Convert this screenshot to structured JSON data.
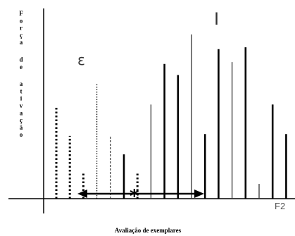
{
  "chart_data": {
    "type": "bar",
    "title": "",
    "ylabel": "Força de ativação",
    "xlabel": "Avaliação de exemplares",
    "x_axis_end_label": "F2",
    "annotations": {
      "epsilon": "ε",
      "i_symbol": "I",
      "star": "*"
    },
    "ylim": [
      0,
      100
    ],
    "grid": false,
    "legend": "none",
    "bars": [
      {
        "value": 50,
        "style": "dotted-thick"
      },
      {
        "value": 34,
        "style": "dotted-thick"
      },
      {
        "value": 14,
        "style": "dotted-thick"
      },
      {
        "value": 62,
        "style": "dotted-thin"
      },
      {
        "value": 34,
        "style": "dashed-thin"
      },
      {
        "value": 24,
        "style": "solid-thick"
      },
      {
        "value": 14,
        "style": "dotted-thick"
      },
      {
        "value": 51,
        "style": "solid-thin"
      },
      {
        "value": 73,
        "style": "solid-thick"
      },
      {
        "value": 67,
        "style": "solid-thick"
      },
      {
        "value": 89,
        "style": "solid-thin"
      },
      {
        "value": 35,
        "style": "solid-thick"
      },
      {
        "value": 81,
        "style": "solid-thick"
      },
      {
        "value": 74,
        "style": "solid-thin"
      },
      {
        "value": 82,
        "style": "solid-thick"
      },
      {
        "value": 8,
        "style": "solid-thin"
      },
      {
        "value": 51,
        "style": "solid-thick"
      },
      {
        "value": 35,
        "style": "solid-thick"
      }
    ],
    "colors": {
      "bars": "#000000",
      "thin_bars": "#333333",
      "axis": "#000000"
    }
  }
}
